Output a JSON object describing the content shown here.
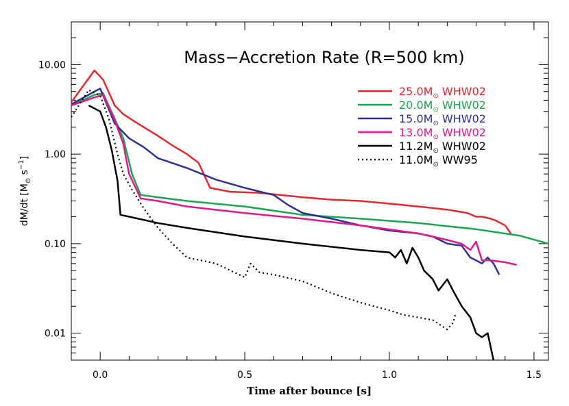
{
  "chart_data": {
    "type": "line",
    "title": "Mass−Accretion Rate (R=500 km)",
    "xlabel": "Time after bounce [s]",
    "ylabel": {
      "prefix": "dM/dt [M",
      "sub": "⊙",
      "mid": " s",
      "sup": "−1",
      "suffix": "]"
    },
    "xlim": [
      -0.1,
      1.55
    ],
    "ylim": [
      0.005,
      30
    ],
    "yscale": "log",
    "x_ticks": [
      0.0,
      0.5,
      1.0,
      1.5
    ],
    "x_tick_labels": [
      "0.0",
      "0.5",
      "1.0",
      "1.5"
    ],
    "y_ticks": [
      0.01,
      0.1,
      1,
      10
    ],
    "y_tick_labels": [
      "0.01",
      "0.10",
      "1.00",
      "10.00"
    ],
    "grid": false,
    "legend_position": "top-right",
    "series": [
      {
        "name": "25.0M⊙ WHW02",
        "mass": "25.0M",
        "model": "WHW02",
        "color": "#e8262d",
        "style": "solid",
        "x": [
          -0.1,
          -0.02,
          0.01,
          0.05,
          0.08,
          0.12,
          0.2,
          0.25,
          0.3,
          0.34,
          0.38,
          0.45,
          0.55,
          0.7,
          0.8,
          0.9,
          1.0,
          1.1,
          1.2,
          1.27,
          1.3,
          1.32,
          1.35,
          1.37,
          1.4,
          1.42
        ],
        "y": [
          3.8,
          8.6,
          6.8,
          3.5,
          2.8,
          2.3,
          1.6,
          1.25,
          1.0,
          0.8,
          0.42,
          0.38,
          0.37,
          0.33,
          0.31,
          0.3,
          0.28,
          0.26,
          0.24,
          0.22,
          0.2,
          0.2,
          0.19,
          0.18,
          0.16,
          0.13
        ]
      },
      {
        "name": "20.0M⊙ WHW02",
        "mass": "20.0M",
        "model": "WHW02",
        "color": "#1aa651",
        "style": "solid",
        "x": [
          -0.1,
          -0.02,
          0.01,
          0.05,
          0.08,
          0.11,
          0.14,
          0.2,
          0.3,
          0.5,
          0.7,
          0.9,
          1.1,
          1.3,
          1.45,
          1.55
        ],
        "y": [
          3.5,
          4.6,
          4.8,
          2.5,
          1.5,
          0.6,
          0.35,
          0.33,
          0.3,
          0.26,
          0.21,
          0.19,
          0.17,
          0.145,
          0.123,
          0.1
        ]
      },
      {
        "name": "15.0M⊙ WHW02",
        "mass": "15.0M",
        "model": "WHW02",
        "color": "#2f3192",
        "style": "solid",
        "x": [
          -0.1,
          -0.02,
          0.0,
          0.05,
          0.1,
          0.15,
          0.2,
          0.3,
          0.4,
          0.5,
          0.6,
          0.65,
          0.7,
          0.8,
          0.9,
          1.0,
          1.1,
          1.15,
          1.2,
          1.25,
          1.28,
          1.3,
          1.32,
          1.34,
          1.36,
          1.38
        ],
        "y": [
          3.6,
          5.0,
          5.4,
          2.2,
          1.5,
          1.2,
          0.9,
          0.7,
          0.52,
          0.42,
          0.35,
          0.27,
          0.22,
          0.19,
          0.16,
          0.14,
          0.13,
          0.12,
          0.1,
          0.095,
          0.07,
          0.065,
          0.06,
          0.07,
          0.06,
          0.045
        ]
      },
      {
        "name": "13.0M⊙ WHW02",
        "mass": "13.0M",
        "model": "WHW02",
        "color": "#e6168a",
        "style": "solid",
        "x": [
          -0.1,
          -0.02,
          0.01,
          0.05,
          0.08,
          0.1,
          0.14,
          0.2,
          0.3,
          0.5,
          0.7,
          0.9,
          1.1,
          1.15,
          1.2,
          1.25,
          1.28,
          1.3,
          1.32,
          1.35,
          1.4,
          1.44
        ],
        "y": [
          3.5,
          4.3,
          4.6,
          2.4,
          1.3,
          0.6,
          0.32,
          0.3,
          0.26,
          0.22,
          0.19,
          0.16,
          0.13,
          0.12,
          0.11,
          0.1,
          0.085,
          0.105,
          0.065,
          0.065,
          0.062,
          0.058
        ]
      },
      {
        "name": "11.2M⊙ WHW02",
        "mass": "11.2M",
        "model": "WHW02",
        "color": "#000000",
        "style": "solid",
        "x": [
          -0.04,
          0.0,
          0.02,
          0.04,
          0.06,
          0.07,
          0.1,
          0.2,
          0.3,
          0.5,
          0.7,
          0.9,
          1.0,
          1.02,
          1.04,
          1.06,
          1.08,
          1.1,
          1.12,
          1.15,
          1.17,
          1.2,
          1.22,
          1.25,
          1.28,
          1.3,
          1.32,
          1.34,
          1.36
        ],
        "y": [
          3.5,
          3.0,
          2.0,
          1.1,
          0.5,
          0.21,
          0.2,
          0.17,
          0.15,
          0.12,
          0.1,
          0.085,
          0.08,
          0.07,
          0.085,
          0.06,
          0.09,
          0.07,
          0.05,
          0.04,
          0.03,
          0.04,
          0.03,
          0.02,
          0.015,
          0.01,
          0.009,
          0.01,
          0.005
        ]
      },
      {
        "name": "11.0M⊙ WW95",
        "mass": "11.0M",
        "model": "WW95",
        "color": "#000000",
        "style": "dotted",
        "x": [
          -0.1,
          -0.04,
          0.0,
          0.03,
          0.06,
          0.08,
          0.11,
          0.15,
          0.2,
          0.25,
          0.3,
          0.4,
          0.5,
          0.52,
          0.55,
          0.6,
          0.7,
          0.8,
          0.9,
          1.0,
          1.05,
          1.1,
          1.15,
          1.2,
          1.22,
          1.23
        ],
        "y": [
          2.6,
          5.2,
          4.5,
          2.5,
          1.0,
          0.6,
          0.4,
          0.25,
          0.15,
          0.1,
          0.07,
          0.06,
          0.042,
          0.06,
          0.048,
          0.045,
          0.038,
          0.028,
          0.022,
          0.018,
          0.016,
          0.015,
          0.014,
          0.011,
          0.013,
          0.017
        ]
      }
    ]
  }
}
